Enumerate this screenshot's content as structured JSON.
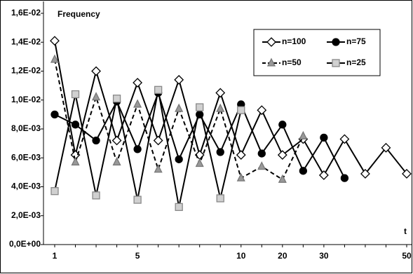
{
  "chart_data": {
    "type": "line",
    "y_label": "Frequency",
    "x_label": "t",
    "categories": [
      "1",
      null,
      null,
      null,
      "5",
      null,
      null,
      null,
      null,
      "10",
      null,
      "20",
      null,
      "30",
      null,
      null,
      null,
      "50"
    ],
    "ylim": [
      0,
      0.016
    ],
    "yticks": [
      {
        "value": 0,
        "label": "0,0E+00"
      },
      {
        "value": 0.002,
        "label": "2,0E-03"
      },
      {
        "value": 0.004,
        "label": "4,0E-03"
      },
      {
        "value": 0.006,
        "label": "6,0E-03"
      },
      {
        "value": 0.008,
        "label": "8,0E-03"
      },
      {
        "value": 0.01,
        "label": "1,0E-02"
      },
      {
        "value": 0.012,
        "label": "1,2E-02"
      },
      {
        "value": 0.014,
        "label": "1,4E-02"
      },
      {
        "value": 0.016,
        "label": "1,6E-02"
      }
    ],
    "grid": false,
    "legend": "upper right",
    "series": [
      {
        "name": "n=100",
        "color": "#000000",
        "marker": "diamond",
        "marker_fill": "#ffffff",
        "dash": false,
        "values": [
          0.0141,
          0.0062,
          0.012,
          0.0072,
          0.0112,
          0.0072,
          0.0114,
          0.0062,
          0.0105,
          0.0062,
          0.0093,
          0.0062,
          0.0073,
          0.0048,
          0.0073,
          0.0049,
          0.0067,
          0.0049
        ]
      },
      {
        "name": "n=75",
        "color": "#000000",
        "marker": "circle",
        "marker_fill": "#000000",
        "dash": false,
        "values": [
          0.009,
          0.0083,
          0.0072,
          0.0099,
          0.0066,
          0.0105,
          0.0059,
          0.009,
          0.0064,
          0.0097,
          0.0063,
          0.0083,
          0.0051,
          0.0074,
          0.0046,
          null,
          null,
          null
        ]
      },
      {
        "name": "n=50",
        "color": "#000000",
        "marker": "triangle",
        "marker_fill": "#999999",
        "dash": true,
        "values": [
          0.0128,
          0.0057,
          0.0102,
          0.0057,
          0.0097,
          0.0052,
          0.0094,
          0.0056,
          0.0094,
          0.0046,
          0.0054,
          0.0045,
          0.0075,
          null,
          null,
          null,
          null,
          null
        ]
      },
      {
        "name": "n=25",
        "color": "#000000",
        "marker": "square",
        "marker_fill": "#d0d0d0",
        "dash": false,
        "values": [
          0.0037,
          0.0104,
          0.0034,
          0.0101,
          0.0031,
          0.0107,
          0.0026,
          0.0095,
          0.0032,
          0.0093,
          null,
          null,
          null,
          null,
          null,
          null,
          null,
          null
        ]
      }
    ]
  }
}
